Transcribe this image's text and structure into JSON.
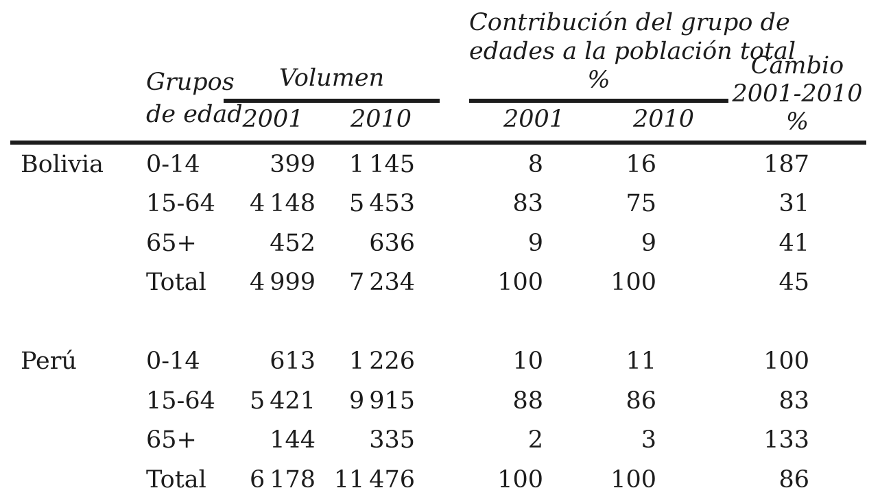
{
  "table": {
    "headers": {
      "age_group": {
        "line1": "Grupos",
        "line2": "de edad"
      },
      "volumen": {
        "label": "Volumen",
        "year1": "2001",
        "year2": "2010"
      },
      "contribucion": {
        "line1": "Contribución del grupo de",
        "line2": "edades a la población total",
        "line3": "%",
        "year1": "2001",
        "year2": "2010"
      },
      "cambio": {
        "line1": "Cambio",
        "line2": "2001-2010",
        "line3": "%"
      }
    },
    "sections": [
      {
        "country": "Bolivia",
        "rows": [
          {
            "age": "0-14",
            "vol_2001": "399",
            "vol_2010": "1 145",
            "pct_2001": "8",
            "pct_2010": "16",
            "cambio": "187"
          },
          {
            "age": "15-64",
            "vol_2001": "4 148",
            "vol_2010": "5 453",
            "pct_2001": "83",
            "pct_2010": "75",
            "cambio": "31"
          },
          {
            "age": "65+",
            "vol_2001": "452",
            "vol_2010": "636",
            "pct_2001": "9",
            "pct_2010": "9",
            "cambio": "41"
          },
          {
            "age": "Total",
            "vol_2001": "4 999",
            "vol_2010": "7 234",
            "pct_2001": "100",
            "pct_2010": "100",
            "cambio": "45"
          }
        ]
      },
      {
        "country": "Perú",
        "rows": [
          {
            "age": "0-14",
            "vol_2001": "613",
            "vol_2010": "1 226",
            "pct_2001": "10",
            "pct_2010": "11",
            "cambio": "100"
          },
          {
            "age": "15-64",
            "vol_2001": "5 421",
            "vol_2010": "9 915",
            "pct_2001": "88",
            "pct_2010": "86",
            "cambio": "83"
          },
          {
            "age": "65+",
            "vol_2001": "144",
            "vol_2010": "335",
            "pct_2001": "2",
            "pct_2010": "3",
            "cambio": "133"
          },
          {
            "age": "Total",
            "vol_2001": "6 178",
            "vol_2010": "11 476",
            "pct_2001": "100",
            "pct_2010": "100",
            "cambio": "86"
          }
        ]
      }
    ],
    "colors": {
      "text": "#1c1c1c",
      "rule": "#1c1c1c",
      "background": "#ffffff"
    }
  }
}
